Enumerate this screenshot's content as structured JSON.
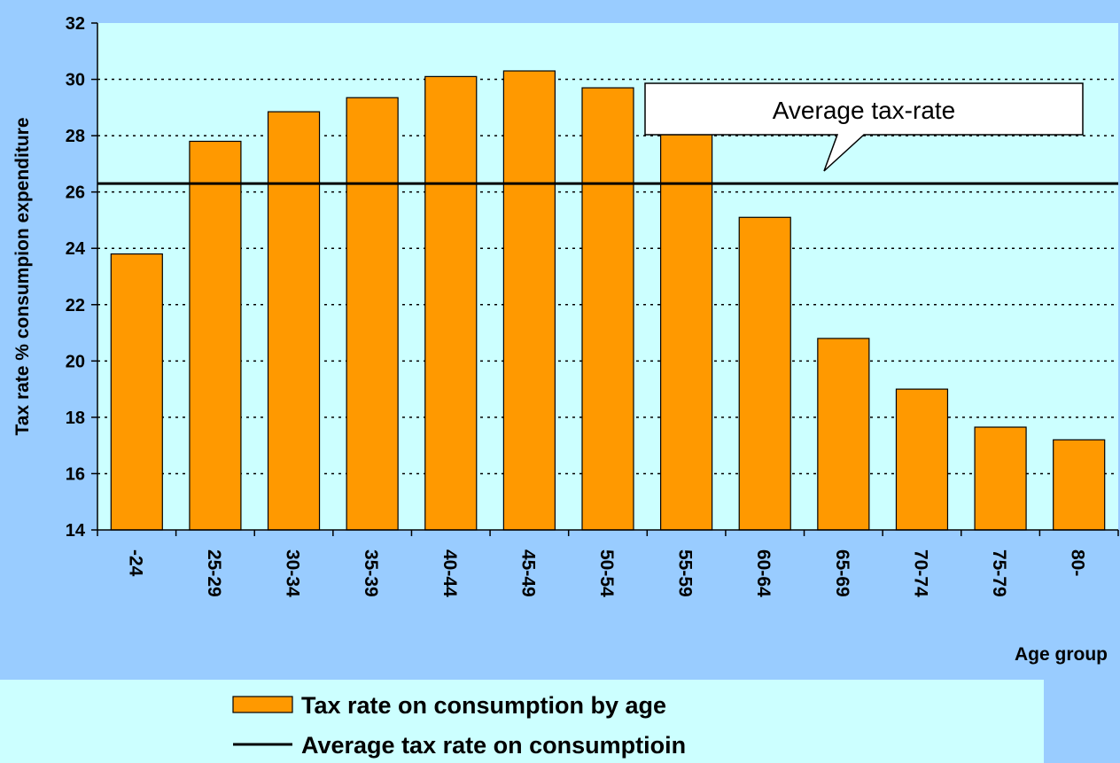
{
  "chart_data": {
    "type": "bar",
    "y_label": "Tax rate % consumpion expenditure",
    "x_label": "Age group",
    "categories": [
      "-24",
      "25-29",
      "30-34",
      "35-39",
      "40-44",
      "45-49",
      "50-54",
      "55-59",
      "60-64",
      "65-69",
      "70-74",
      "75-79",
      "80-"
    ],
    "series": [
      {
        "name": "Tax rate on consumption by age",
        "type": "bar",
        "color": "#ff9900",
        "values": [
          23.8,
          27.8,
          28.85,
          29.35,
          30.1,
          30.3,
          29.7,
          28.15,
          25.1,
          20.8,
          19.0,
          17.65,
          17.2
        ]
      },
      {
        "name": "Average tax rate on consumptioin",
        "type": "line",
        "color": "#000000",
        "values": [
          26.3,
          26.3,
          26.3,
          26.3,
          26.3,
          26.3,
          26.3,
          26.3,
          26.3,
          26.3,
          26.3,
          26.3,
          26.3
        ]
      }
    ],
    "annotation": "Average tax-rate",
    "ylim": [
      14,
      32
    ],
    "yticks": [
      14,
      16,
      18,
      20,
      22,
      24,
      26,
      28,
      30,
      32
    ],
    "grid": true
  }
}
